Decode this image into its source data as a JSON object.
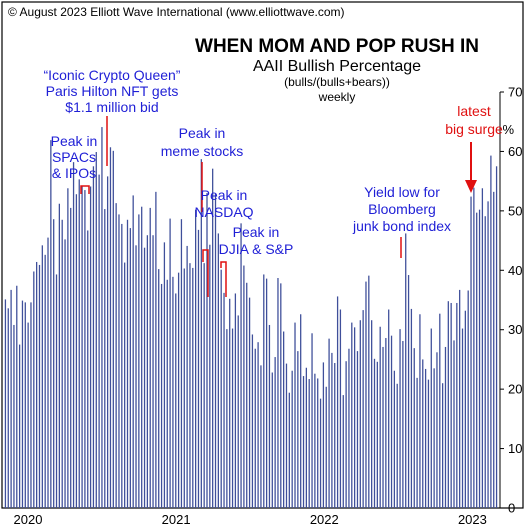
{
  "copyright": "© August 2023 Elliott Wave International (www.elliottwave.com)",
  "chart_data": {
    "type": "bar",
    "title": "WHEN MOM AND POP RUSH IN",
    "subtitle": "AAII Bullish Percentage",
    "subtitle2": "(bulls/(bulls+bears))",
    "frequency": "weekly",
    "ylabel": "%",
    "ylim": [
      0,
      70
    ],
    "yticks": [
      "0",
      "10",
      "20",
      "30",
      "40",
      "50",
      "60",
      "70"
    ],
    "x_year_labels": [
      "2020",
      "2021",
      "2022",
      "2023"
    ],
    "x_start": "2020-01",
    "x_end": "2023-08",
    "series": [
      {
        "values": [
          35.1,
          33.6,
          36.7,
          30.8,
          37.4,
          27.5,
          34.9,
          34.6,
          31.2,
          34.6,
          39.8,
          41.4,
          40.9,
          44.2,
          42.6,
          45.5,
          61.9,
          48.6,
          39.3,
          51.2,
          48.5,
          45.2,
          53.8,
          50.5,
          58.2,
          52.8,
          55.3,
          54.1,
          53.5,
          46.7,
          54.1,
          57.5,
          59.9,
          56.1,
          64.1,
          50.3,
          55.8,
          60.7,
          60.1,
          51.3,
          49.4,
          47.8,
          41.3,
          48.5,
          47.1,
          52.6,
          44.2,
          49.4,
          50.7,
          43.8,
          45.9,
          50.5,
          45.9,
          53.2,
          40.2,
          37.7,
          44.7,
          38.4,
          48.7,
          38.9,
          36.1,
          39.6,
          48.6,
          40.3,
          44.1,
          41.2,
          40.4,
          50.2,
          46.8,
          58.7,
          41.2,
          53.0,
          44.3,
          57.1,
          52.9,
          46.2,
          40.1,
          36.2,
          30.1,
          35.2,
          30.2,
          36.1,
          32.4,
          47.9,
          40.8,
          37.9,
          35.4,
          29.2,
          26.8,
          27.9,
          24.0,
          39.3,
          38.6,
          30.8,
          22.8,
          25.4,
          38.7,
          37.8,
          29.7,
          24.3,
          19.4,
          23.1,
          31.2,
          26.4,
          32.6,
          22.2,
          23.6,
          21.7,
          29.4,
          22.6,
          21.8,
          18.4,
          24.5,
          20.4,
          28.5,
          26.1,
          24.4,
          35.6,
          33.4,
          19.0,
          24.7,
          26.8,
          31.2,
          30.4,
          26.4,
          31.6,
          33.3,
          38.1,
          39.1,
          31.6,
          25.1,
          24.6,
          30.5,
          27.1,
          28.6,
          33.4,
          29.0,
          23.1,
          20.9,
          30.1,
          28.1,
          46.2,
          39.2,
          33.5,
          26.9,
          21.9,
          32.6,
          25.0,
          23.4,
          21.6,
          30.2,
          23.5,
          26.2,
          32.7,
          21.0,
          27.1,
          34.8,
          34.5,
          28.2,
          34.5,
          36.7,
          30.2,
          33.2,
          36.6,
          52.4,
          53.9,
          49.7,
          50.2,
          53.8,
          49.1,
          51.6,
          59.3,
          53.2,
          57.5
        ]
      }
    ],
    "annotations": {
      "iconic_crypto_queen": "“Iconic Crypto Queen”",
      "paris_hilton": "Paris Hilton NFT gets",
      "million_bid": "$1.1 million bid",
      "peak_spacs_1": "Peak in",
      "peak_spacs_2": "SPACs",
      "peak_spacs_3": "& IPOs",
      "peak_meme_1": "Peak in",
      "peak_meme_2": "meme stocks",
      "peak_nasdaq_1": "Peak in",
      "peak_nasdaq_2": "NASDAQ",
      "peak_djia_1": "Peak in",
      "peak_djia_2": "DJIA & S&P",
      "yield_1": "Yield low for",
      "yield_2": "Bloomberg",
      "yield_3": "junk bond index",
      "latest_1": "latest",
      "latest_2": "big surge"
    }
  },
  "colors": {
    "bar": "#3f4f9a",
    "annotation": "#1f1fd6",
    "highlight": "#e01010",
    "frame": "#000000"
  }
}
